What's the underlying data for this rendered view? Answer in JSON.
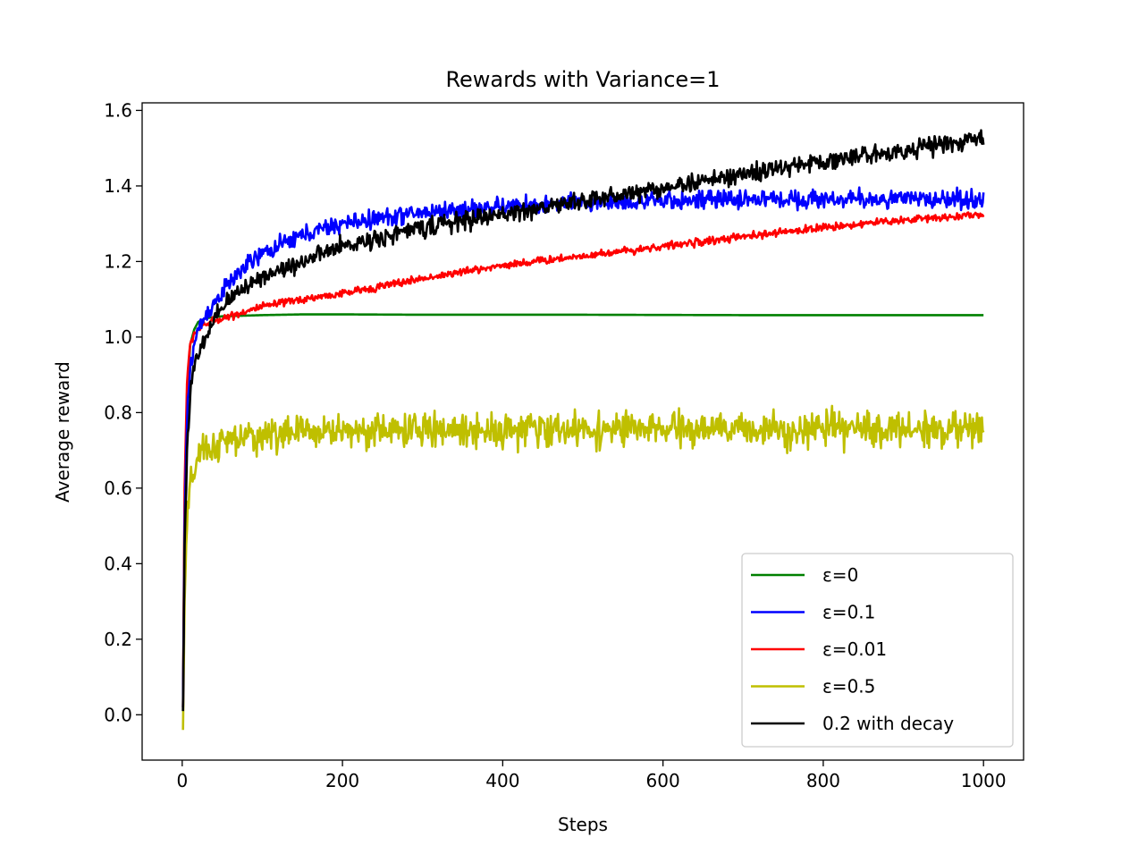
{
  "chart_data": {
    "type": "line",
    "title": "Rewards with Variance=1",
    "xlabel": "Steps",
    "ylabel": "Average reward",
    "xlim": [
      -50,
      1050
    ],
    "ylim": [
      -0.12,
      1.62
    ],
    "xticks": [
      0,
      200,
      400,
      600,
      800,
      1000
    ],
    "yticks": [
      0.0,
      0.2,
      0.4,
      0.6,
      0.8,
      1.0,
      1.2,
      1.4,
      1.6
    ],
    "grid": false,
    "legend_position": "lower-right",
    "series": [
      {
        "name": "ε=0",
        "color": "#008000",
        "x": [
          1,
          3,
          6,
          10,
          15,
          20,
          30,
          50,
          100,
          150,
          200,
          300,
          500,
          700,
          1000
        ],
        "y": [
          0.01,
          0.55,
          0.85,
          0.98,
          1.02,
          1.04,
          1.05,
          1.055,
          1.058,
          1.06,
          1.06,
          1.059,
          1.059,
          1.058,
          1.058
        ],
        "noise": 0.0
      },
      {
        "name": "ε=0.1",
        "color": "#0000ff",
        "x": [
          1,
          3,
          6,
          10,
          15,
          20,
          30,
          50,
          75,
          100,
          150,
          200,
          300,
          400,
          500,
          600,
          700,
          800,
          900,
          1000
        ],
        "y": [
          0.02,
          0.5,
          0.78,
          0.92,
          0.98,
          1.02,
          1.06,
          1.12,
          1.18,
          1.22,
          1.27,
          1.3,
          1.33,
          1.345,
          1.355,
          1.36,
          1.365,
          1.365,
          1.365,
          1.365
        ],
        "noise": 0.012
      },
      {
        "name": "ε=0.01",
        "color": "#ff0000",
        "x": [
          1,
          3,
          6,
          10,
          15,
          20,
          30,
          50,
          100,
          150,
          200,
          300,
          400,
          500,
          600,
          700,
          800,
          900,
          1000
        ],
        "y": [
          0.02,
          0.6,
          0.88,
          0.98,
          1.01,
          1.02,
          1.035,
          1.05,
          1.08,
          1.1,
          1.115,
          1.155,
          1.19,
          1.215,
          1.24,
          1.265,
          1.29,
          1.31,
          1.325
        ],
        "noise": 0.005
      },
      {
        "name": "ε=0.5",
        "color": "#bfbf00",
        "x": [
          1,
          3,
          6,
          10,
          15,
          20,
          30,
          50,
          100,
          150,
          200,
          300,
          500,
          700,
          1000
        ],
        "y": [
          -0.04,
          0.3,
          0.5,
          0.6,
          0.65,
          0.68,
          0.7,
          0.72,
          0.74,
          0.75,
          0.752,
          0.754,
          0.755,
          0.756,
          0.756
        ],
        "noise": 0.022
      },
      {
        "name": "0.2 with decay",
        "color": "#000000",
        "x": [
          1,
          3,
          6,
          10,
          15,
          20,
          30,
          50,
          75,
          100,
          150,
          200,
          300,
          400,
          500,
          600,
          700,
          800,
          900,
          1000
        ],
        "y": [
          0.01,
          0.45,
          0.7,
          0.85,
          0.92,
          0.95,
          1.0,
          1.08,
          1.13,
          1.16,
          1.2,
          1.24,
          1.29,
          1.325,
          1.36,
          1.395,
          1.43,
          1.465,
          1.495,
          1.525
        ],
        "noise": 0.012
      }
    ]
  }
}
